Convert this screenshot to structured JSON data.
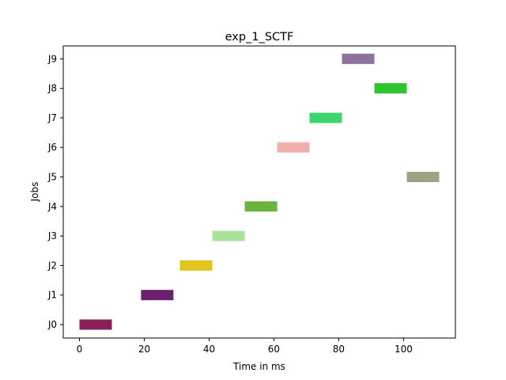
{
  "chart_data": {
    "type": "gantt",
    "title": "exp_1_SCTF",
    "xlabel": "Time in ms",
    "ylabel": "Jobs",
    "xlim": [
      -5,
      116
    ],
    "x_ticks": [
      0,
      20,
      40,
      60,
      80,
      100
    ],
    "jobs": [
      "J0",
      "J1",
      "J2",
      "J3",
      "J4",
      "J5",
      "J6",
      "J7",
      "J8",
      "J9"
    ],
    "tasks": [
      {
        "job": "J0",
        "start": 0,
        "end": 10,
        "color": "#8a1f5a"
      },
      {
        "job": "J1",
        "start": 19,
        "end": 29,
        "color": "#6b1f6e"
      },
      {
        "job": "J2",
        "start": 31,
        "end": 41,
        "color": "#e3c41c"
      },
      {
        "job": "J3",
        "start": 41,
        "end": 51,
        "color": "#a9e29b"
      },
      {
        "job": "J4",
        "start": 51,
        "end": 61,
        "color": "#6db33f"
      },
      {
        "job": "J5",
        "start": 101,
        "end": 111,
        "color": "#9ea383"
      },
      {
        "job": "J6",
        "start": 61,
        "end": 71,
        "color": "#f2aeaa"
      },
      {
        "job": "J7",
        "start": 71,
        "end": 81,
        "color": "#3fd46f"
      },
      {
        "job": "J8",
        "start": 91,
        "end": 101,
        "color": "#2fc42f"
      },
      {
        "job": "J9",
        "start": 81,
        "end": 91,
        "color": "#8c739b"
      }
    ],
    "grid": false,
    "legend": "none"
  }
}
